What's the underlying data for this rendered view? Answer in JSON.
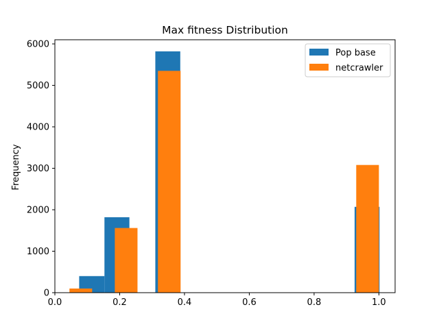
{
  "chart_data": {
    "type": "bar",
    "title": "Max fitness Distribution",
    "xlabel": "",
    "ylabel": "Frequency",
    "xlim": [
      0.0,
      1.05
    ],
    "ylim": [
      0,
      6100
    ],
    "xticks": [
      0.0,
      0.2,
      0.4,
      0.6,
      0.8,
      1.0
    ],
    "xtick_labels": [
      "0.0",
      "0.2",
      "0.4",
      "0.6",
      "0.8",
      "1.0"
    ],
    "yticks": [
      0,
      1000,
      2000,
      3000,
      4000,
      5000,
      6000
    ],
    "ytick_labels": [
      "0",
      "1000",
      "2000",
      "3000",
      "4000",
      "5000",
      "6000"
    ],
    "grid": false,
    "legend_position": "top-right",
    "series": [
      {
        "name": "Pop base",
        "color": "#1f77b4",
        "bars": [
          {
            "x0": 0.075,
            "x1": 0.112,
            "value": 0
          },
          {
            "x0": 0.075,
            "x1": 0.153,
            "value": 400
          },
          {
            "x0": 0.153,
            "x1": 0.23,
            "value": 1820
          },
          {
            "x0": 0.31,
            "x1": 0.387,
            "value": 5820
          },
          {
            "x0": 0.925,
            "x1": 1.002,
            "value": 2070
          }
        ]
      },
      {
        "name": "netcrawler",
        "color": "#ff7f0e",
        "bars": [
          {
            "x0": 0.045,
            "x1": 0.115,
            "value": 100
          },
          {
            "x0": 0.185,
            "x1": 0.255,
            "value": 1560
          },
          {
            "x0": 0.318,
            "x1": 0.388,
            "value": 5350
          },
          {
            "x0": 0.93,
            "x1": 1.0,
            "value": 3080
          }
        ]
      }
    ]
  }
}
